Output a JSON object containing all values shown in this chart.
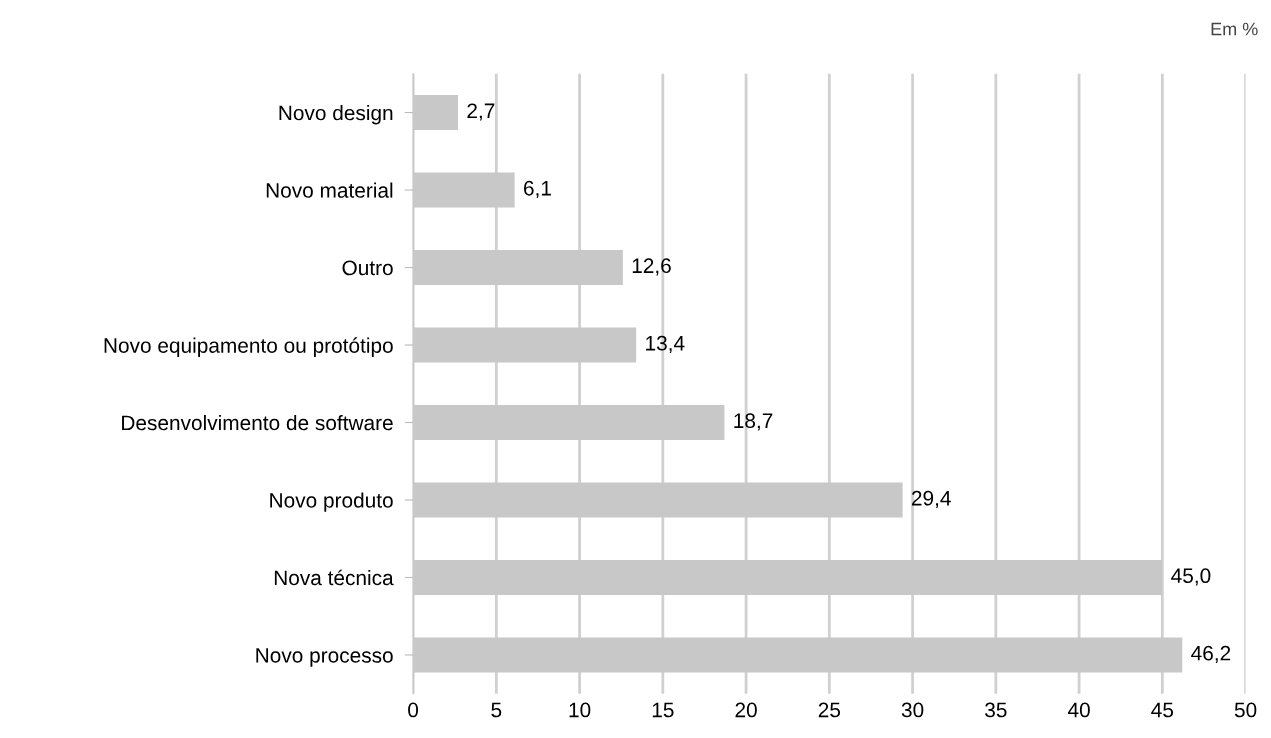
{
  "chart_data": {
    "type": "bar",
    "orientation": "horizontal",
    "categories": [
      "Novo design",
      "Novo material",
      "Outro",
      "Novo equipamento ou protótipo",
      "Desenvolvimento de software",
      "Novo produto",
      "Nova técnica",
      "Novo processo"
    ],
    "values": [
      2.7,
      6.1,
      12.6,
      13.4,
      18.7,
      29.4,
      45.0,
      46.2
    ],
    "value_labels": [
      "2,7",
      "6,1",
      "12,6",
      "13,4",
      "18,7",
      "29,4",
      "45,0",
      "46,2"
    ],
    "color": "#c8c8c8",
    "xlim": [
      0,
      50
    ],
    "xticks": [
      0,
      5,
      10,
      15,
      20,
      25,
      30,
      35,
      40,
      45,
      50
    ],
    "grid": "x",
    "legend": false,
    "annotations": [
      "Em %"
    ]
  }
}
